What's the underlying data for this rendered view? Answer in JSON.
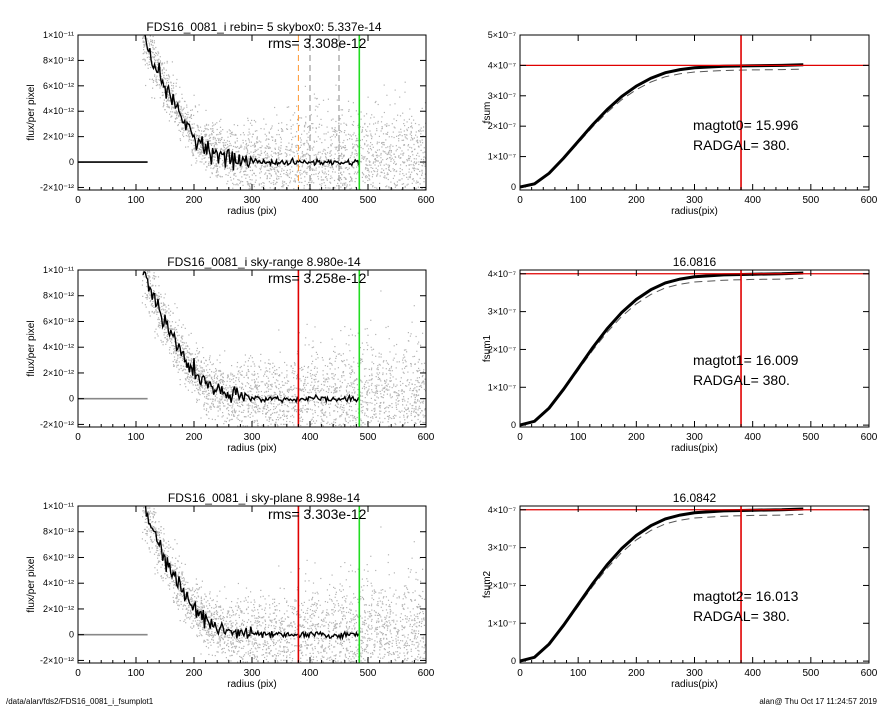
{
  "footer": {
    "path": "/data/alan/fds2/FDS16_0081_i_fsumplot1",
    "stamp": "alan@  Thu Oct 17 11:24:57 2019"
  },
  "colors": {
    "scatter": "#b4b4b4",
    "profile": "#000000",
    "red": "#e00000",
    "green": "#22dd22",
    "orange": "#ff9933"
  },
  "chart_data": [
    {
      "type": "scatter",
      "title": "FDS16_0081_i rebin= 5    skybox0:  5.337e-14",
      "annotation": "rms= 3.308e-12",
      "xlabel": "radius (pix)",
      "ylabel": "flux/per pixel",
      "xlim": [
        0,
        600
      ],
      "ylim": [
        -2.2e-12,
        1e-11
      ],
      "xticks": [
        0,
        100,
        200,
        300,
        400,
        500,
        600
      ],
      "yticks": [
        -2e-12,
        0,
        2e-12,
        4e-12,
        6e-12,
        8e-12,
        1e-11
      ],
      "ytick_labels": [
        "-2×10⁻¹²",
        "0",
        "2×10⁻¹²",
        "4×10⁻¹²",
        "6×10⁻¹²",
        "8×10⁻¹²",
        "1×10⁻¹¹"
      ],
      "profile": {
        "r": [
          110,
          120,
          130,
          140,
          150,
          160,
          170,
          180,
          190,
          200,
          210,
          220,
          230,
          240,
          250,
          260,
          280,
          300,
          330,
          360,
          400,
          450,
          485
        ],
        "flux": [
          1e-11,
          9.2e-12,
          8e-12,
          6.9e-12,
          5.9e-12,
          5e-12,
          4.2e-12,
          3.4e-12,
          2.7e-12,
          2.1e-12,
          1.6e-12,
          1.2e-12,
          8.5e-13,
          6e-13,
          4e-13,
          2.5e-13,
          1e-13,
          5e-14,
          0,
          -5e-14,
          0,
          -5e-14,
          0
        ]
      },
      "baseline": {
        "from": 0,
        "to": 120,
        "value": 0,
        "color": "black"
      },
      "vlines": [
        {
          "x": 380,
          "color": "orange",
          "style": "dashed"
        },
        {
          "x": 400,
          "color": "gray",
          "style": "dashed"
        },
        {
          "x": 450,
          "color": "gray",
          "style": "dashed"
        },
        {
          "x": 485,
          "color": "green",
          "style": "solid"
        }
      ]
    },
    {
      "type": "line",
      "title": "",
      "annotations": [
        "magtot0=  15.996",
        "RADGAL=    380."
      ],
      "xlabel": "radius(pix)",
      "ylabel": "fsum",
      "xlim": [
        0,
        600
      ],
      "ylim": [
        -1e-08,
        5e-07
      ],
      "xticks": [
        0,
        100,
        200,
        300,
        400,
        500,
        600
      ],
      "yticks": [
        0,
        1e-07,
        2e-07,
        3e-07,
        4e-07,
        5e-07
      ],
      "ytick_labels": [
        "0",
        "1×10⁻⁷",
        "2×10⁻⁷",
        "3×10⁻⁷",
        "4×10⁻⁷",
        "5×10⁻⁷"
      ],
      "curve": {
        "x": [
          0,
          25,
          50,
          75,
          100,
          125,
          150,
          175,
          200,
          225,
          250,
          275,
          300,
          350,
          400,
          450,
          487
        ],
        "y": [
          0,
          1e-08,
          4.5e-08,
          9.5e-08,
          1.5e-07,
          2.05e-07,
          2.55e-07,
          2.98e-07,
          3.32e-07,
          3.58e-07,
          3.76e-07,
          3.86e-07,
          3.92e-07,
          3.97e-07,
          3.99e-07,
          4e-07,
          4.02e-07
        ]
      },
      "hline": {
        "y": 4e-07,
        "color": "red"
      },
      "vline": {
        "x": 380,
        "color": "red"
      }
    },
    {
      "type": "scatter",
      "title": "FDS16_0081_i sky-range  8.980e-14",
      "annotation": "rms= 3.258e-12",
      "xlabel": "radius (pix)",
      "ylabel": "flux/per pixel",
      "xlim": [
        0,
        600
      ],
      "ylim": [
        -2.2e-12,
        1e-11
      ],
      "xticks": [
        0,
        100,
        200,
        300,
        400,
        500,
        600
      ],
      "yticks": [
        -2e-12,
        0,
        2e-12,
        4e-12,
        6e-12,
        8e-12,
        1e-11
      ],
      "ytick_labels": [
        "-2×10⁻¹²",
        "0",
        "2×10⁻¹²",
        "4×10⁻¹²",
        "6×10⁻¹²",
        "8×10⁻¹²",
        "1×10⁻¹¹"
      ],
      "profile": {
        "r": [
          110,
          120,
          130,
          140,
          150,
          160,
          170,
          180,
          190,
          200,
          210,
          220,
          230,
          240,
          250,
          260,
          280,
          300,
          330,
          360,
          400,
          450,
          485
        ],
        "flux": [
          1e-11,
          9.2e-12,
          8e-12,
          6.9e-12,
          5.9e-12,
          5e-12,
          4.2e-12,
          3.4e-12,
          2.7e-12,
          2.1e-12,
          1.6e-12,
          1.2e-12,
          8.5e-13,
          6e-13,
          4e-13,
          2.5e-13,
          1e-13,
          5e-14,
          0,
          -5e-14,
          0,
          -5e-14,
          0
        ]
      },
      "baseline": {
        "from": 0,
        "to": 120,
        "value": 0,
        "color": "gray"
      },
      "vlines": [
        {
          "x": 380,
          "color": "red",
          "style": "solid"
        },
        {
          "x": 485,
          "color": "green",
          "style": "solid"
        }
      ]
    },
    {
      "type": "line",
      "title": "16.0816",
      "annotations": [
        "magtot1=  16.009",
        "RADGAL=    380."
      ],
      "xlabel": "radius(pix)",
      "ylabel": "fsum1",
      "xlim": [
        0,
        600
      ],
      "ylim": [
        -5e-09,
        4.1e-07
      ],
      "xticks": [
        0,
        100,
        200,
        300,
        400,
        500,
        600
      ],
      "yticks": [
        0,
        1e-07,
        2e-07,
        3e-07,
        4e-07
      ],
      "ytick_labels": [
        "0",
        "1×10⁻⁷",
        "2×10⁻⁷",
        "3×10⁻⁷",
        "4×10⁻⁷"
      ],
      "curve": {
        "x": [
          0,
          25,
          50,
          75,
          100,
          125,
          150,
          175,
          200,
          225,
          250,
          275,
          300,
          350,
          400,
          450,
          487
        ],
        "y": [
          0,
          1e-08,
          4.5e-08,
          9.5e-08,
          1.5e-07,
          2.05e-07,
          2.55e-07,
          2.98e-07,
          3.32e-07,
          3.58e-07,
          3.76e-07,
          3.86e-07,
          3.92e-07,
          3.97e-07,
          3.99e-07,
          4e-07,
          4.02e-07
        ]
      },
      "hline": {
        "y": 4e-07,
        "color": "red"
      },
      "vline": {
        "x": 380,
        "color": "red"
      }
    },
    {
      "type": "scatter",
      "title": "FDS16_0081_i sky-plane  8.998e-14",
      "annotation": "rms= 3.303e-12",
      "xlabel": "radius (pix)",
      "ylabel": "flux/per pixel",
      "xlim": [
        0,
        600
      ],
      "ylim": [
        -2.2e-12,
        1e-11
      ],
      "xticks": [
        0,
        100,
        200,
        300,
        400,
        500,
        600
      ],
      "yticks": [
        -2e-12,
        0,
        2e-12,
        4e-12,
        6e-12,
        8e-12,
        1e-11
      ],
      "ytick_labels": [
        "-2×10⁻¹²",
        "0",
        "2×10⁻¹²",
        "4×10⁻¹²",
        "6×10⁻¹²",
        "8×10⁻¹²",
        "1×10⁻¹¹"
      ],
      "profile": {
        "r": [
          110,
          120,
          130,
          140,
          150,
          160,
          170,
          180,
          190,
          200,
          210,
          220,
          230,
          240,
          250,
          260,
          280,
          300,
          330,
          360,
          400,
          450,
          485
        ],
        "flux": [
          1e-11,
          9.2e-12,
          8e-12,
          6.9e-12,
          5.9e-12,
          5e-12,
          4.2e-12,
          3.4e-12,
          2.7e-12,
          2.1e-12,
          1.6e-12,
          1.2e-12,
          8.5e-13,
          6e-13,
          4e-13,
          2.5e-13,
          1e-13,
          5e-14,
          0,
          -5e-14,
          0,
          -5e-14,
          0
        ]
      },
      "baseline": {
        "from": 0,
        "to": 120,
        "value": 0,
        "color": "gray"
      },
      "vlines": [
        {
          "x": 380,
          "color": "red",
          "style": "solid"
        },
        {
          "x": 485,
          "color": "green",
          "style": "solid"
        }
      ]
    },
    {
      "type": "line",
      "title": "16.0842",
      "annotations": [
        "magtot2=  16.013",
        "RADGAL=    380."
      ],
      "xlabel": "radius(pix)",
      "ylabel": "fsum2",
      "xlim": [
        0,
        600
      ],
      "ylim": [
        -5e-09,
        4.1e-07
      ],
      "xticks": [
        0,
        100,
        200,
        300,
        400,
        500,
        600
      ],
      "yticks": [
        0,
        1e-07,
        2e-07,
        3e-07,
        4e-07
      ],
      "ytick_labels": [
        "0",
        "1×10⁻⁷",
        "2×10⁻⁷",
        "3×10⁻⁷",
        "4×10⁻⁷"
      ],
      "curve": {
        "x": [
          0,
          25,
          50,
          75,
          100,
          125,
          150,
          175,
          200,
          225,
          250,
          275,
          300,
          350,
          400,
          450,
          487
        ],
        "y": [
          0,
          1e-08,
          4.5e-08,
          9.5e-08,
          1.5e-07,
          2.05e-07,
          2.55e-07,
          2.98e-07,
          3.32e-07,
          3.58e-07,
          3.76e-07,
          3.86e-07,
          3.92e-07,
          3.97e-07,
          3.99e-07,
          4e-07,
          4.02e-07
        ]
      },
      "hline": {
        "y": 4e-07,
        "color": "red"
      },
      "vline": {
        "x": 380,
        "color": "red"
      }
    }
  ]
}
